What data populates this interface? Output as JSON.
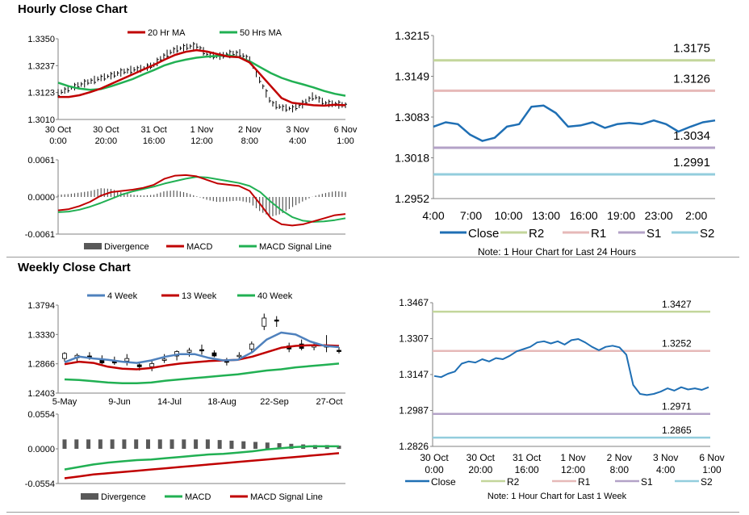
{
  "hourly_title": "Hourly Close Chart",
  "weekly_title": "Weekly Close Chart",
  "colors": {
    "ma20": "#c00000",
    "ma50": "#21b053",
    "close": "#1f6fb4",
    "r2": "#c3d69b",
    "r1": "#e6b9b8",
    "s1": "#b3a2c7",
    "s2": "#93cddd",
    "divergence": "#595959",
    "wk4": "#4f81bd",
    "wk13": "#c00000",
    "wk40": "#21b053"
  },
  "chart_data": [
    {
      "id": "hourly_price",
      "type": "line",
      "legend": [
        {
          "name": "20 Hr MA",
          "color": "#c00000"
        },
        {
          "name": "50 Hrs MA",
          "color": "#21b053"
        }
      ],
      "yticks": [
        "1.3350",
        "1.3237",
        "1.3123",
        "1.3010"
      ],
      "ylim": [
        1.301,
        1.335
      ],
      "xticks": [
        [
          "30 Oct",
          "0:00"
        ],
        [
          "30 Oct",
          "20:00"
        ],
        [
          "31 Oct",
          "16:00"
        ],
        [
          "1 Nov",
          "12:00"
        ],
        [
          "2 Nov",
          "8:00"
        ],
        [
          "3 Nov",
          "4:00"
        ],
        [
          "6 Nov",
          "1:00"
        ]
      ],
      "n": 88,
      "series": [
        {
          "name": "20 Hr MA",
          "values": [
            1.3105,
            1.3105,
            1.3112,
            1.3125,
            1.314,
            1.316,
            1.318,
            1.32,
            1.322,
            1.324,
            1.3262,
            1.3282,
            1.3295,
            1.3302,
            1.3296,
            1.3285,
            1.3275,
            1.3272,
            1.325,
            1.32,
            1.315,
            1.31,
            1.308,
            1.3075,
            1.307,
            1.3068,
            1.3072,
            1.307
          ]
        },
        {
          "name": "50 Hrs MA",
          "values": [
            1.3165,
            1.315,
            1.314,
            1.3135,
            1.3138,
            1.315,
            1.3165,
            1.318,
            1.32,
            1.3218,
            1.3238,
            1.3252,
            1.3262,
            1.327,
            1.3275,
            1.3278,
            1.328,
            1.3272,
            1.3255,
            1.323,
            1.3205,
            1.3185,
            1.317,
            1.3158,
            1.3145,
            1.313,
            1.3118,
            1.311
          ]
        },
        {
          "name": "Close",
          "values": [
            1.312,
            1.314,
            1.3155,
            1.317,
            1.3185,
            1.3195,
            1.321,
            1.322,
            1.3225,
            1.324,
            1.328,
            1.3305,
            1.3315,
            1.332,
            1.3285,
            1.3275,
            1.3285,
            1.329,
            1.326,
            1.317,
            1.308,
            1.306,
            1.3055,
            1.3075,
            1.311,
            1.308,
            1.3075,
            1.307
          ]
        }
      ]
    },
    {
      "id": "hourly_macd",
      "type": "line",
      "legend": [
        {
          "name": "Divergence",
          "color": "#595959"
        },
        {
          "name": "MACD",
          "color": "#c00000"
        },
        {
          "name": "MACD Signal Line",
          "color": "#21b053"
        }
      ],
      "yticks": [
        "0.0061",
        "0.0000",
        "-0.0061"
      ],
      "ylim": [
        -0.0061,
        0.0061
      ],
      "series": [
        {
          "name": "MACD",
          "values": [
            -0.0022,
            -0.002,
            -0.0015,
            -0.0008,
            0.0002,
            0.0008,
            0.001,
            0.0012,
            0.0015,
            0.002,
            0.003,
            0.0035,
            0.0036,
            0.0034,
            0.0028,
            0.0022,
            0.002,
            0.0018,
            0.001,
            -0.0012,
            -0.0035,
            -0.0045,
            -0.0047,
            -0.0045,
            -0.004,
            -0.0035,
            -0.003,
            -0.0028
          ]
        },
        {
          "name": "MACD Signal Line",
          "values": [
            -0.0025,
            -0.0024,
            -0.0021,
            -0.0016,
            -0.001,
            -0.0003,
            0.0004,
            0.0009,
            0.0013,
            0.0017,
            0.0022,
            0.0026,
            0.003,
            0.0033,
            0.0032,
            0.0029,
            0.0026,
            0.0023,
            0.0018,
            0.0008,
            -0.0008,
            -0.0022,
            -0.0033,
            -0.0039,
            -0.0041,
            -0.004,
            -0.0038,
            -0.0035
          ]
        }
      ]
    },
    {
      "id": "hourly_pivot",
      "type": "line",
      "legend": [
        {
          "name": "Close",
          "color": "#1f6fb4"
        },
        {
          "name": "R2",
          "color": "#c3d69b"
        },
        {
          "name": "R1",
          "color": "#e6b9b8"
        },
        {
          "name": "S1",
          "color": "#b3a2c7"
        },
        {
          "name": "S2",
          "color": "#93cddd"
        }
      ],
      "yticks": [
        "1.3215",
        "1.3149",
        "1.3083",
        "1.3018",
        "1.2952"
      ],
      "ylim": [
        1.2952,
        1.3215
      ],
      "xticks": [
        "4:00",
        "7:00",
        "10:00",
        "13:00",
        "16:00",
        "19:00",
        "23:00",
        "2:00"
      ],
      "levels": [
        {
          "name": "R2",
          "value": 1.3175,
          "label": "1.3175"
        },
        {
          "name": "R1",
          "value": 1.3126,
          "label": "1.3126"
        },
        {
          "name": "S1",
          "value": 1.3034,
          "label": "1.3034"
        },
        {
          "name": "S2",
          "value": 1.2991,
          "label": "1.2991"
        }
      ],
      "close": [
        1.3068,
        1.3075,
        1.3072,
        1.3055,
        1.3045,
        1.305,
        1.3068,
        1.3072,
        1.31,
        1.3102,
        1.309,
        1.3068,
        1.307,
        1.3075,
        1.3066,
        1.3072,
        1.3074,
        1.3072,
        1.3078,
        1.3072,
        1.306,
        1.3068,
        1.3075,
        1.3078
      ],
      "note": "Note: 1 Hour Chart for Last 24 Hours"
    },
    {
      "id": "weekly_price",
      "type": "line",
      "legend": [
        {
          "name": "4 Week",
          "color": "#4f81bd"
        },
        {
          "name": "13 Week",
          "color": "#c00000"
        },
        {
          "name": "40 Week",
          "color": "#21b053"
        }
      ],
      "yticks": [
        "1.3794",
        "1.3330",
        "1.2866",
        "1.2403"
      ],
      "ylim": [
        1.2403,
        1.3794
      ],
      "xticks": [
        "5-May",
        "9-Jun",
        "14-Jul",
        "18-Aug",
        "22-Sep",
        "27-Oct"
      ],
      "series": [
        {
          "name": "4 Week",
          "values": [
            1.289,
            1.298,
            1.295,
            1.293,
            1.29,
            1.288,
            1.292,
            1.298,
            1.302,
            1.302,
            1.296,
            1.292,
            1.293,
            1.305,
            1.325,
            1.336,
            1.333,
            1.322,
            1.315,
            1.313
          ]
        },
        {
          "name": "13 Week",
          "values": [
            1.286,
            1.29,
            1.288,
            1.282,
            1.279,
            1.278,
            1.28,
            1.284,
            1.287,
            1.289,
            1.291,
            1.292,
            1.293,
            1.298,
            1.305,
            1.312,
            1.315,
            1.316,
            1.316,
            1.315
          ]
        },
        {
          "name": "40 Week",
          "values": [
            1.262,
            1.261,
            1.259,
            1.257,
            1.256,
            1.256,
            1.257,
            1.26,
            1.262,
            1.264,
            1.266,
            1.268,
            1.27,
            1.273,
            1.276,
            1.278,
            1.281,
            1.283,
            1.285,
            1.287
          ]
        },
        {
          "name": "Candles",
          "values": [
            [
              1.295,
              1.303,
              1.29,
              1.305
            ],
            [
              1.296,
              1.3,
              1.29,
              1.303
            ],
            [
              1.299,
              1.296,
              1.293,
              1.305
            ],
            [
              1.294,
              1.288,
              1.286,
              1.3
            ],
            [
              1.292,
              1.288,
              1.285,
              1.298
            ],
            [
              1.291,
              1.295,
              1.284,
              1.302
            ],
            [
              1.285,
              1.282,
              1.276,
              1.29
            ],
            [
              1.282,
              1.287,
              1.275,
              1.292
            ],
            [
              1.294,
              1.294,
              1.288,
              1.302
            ],
            [
              1.299,
              1.306,
              1.292,
              1.308
            ],
            [
              1.305,
              1.308,
              1.298,
              1.312
            ],
            [
              1.309,
              1.307,
              1.301,
              1.317
            ],
            [
              1.304,
              1.299,
              1.297,
              1.308
            ],
            [
              1.293,
              1.289,
              1.284,
              1.296
            ],
            [
              1.298,
              1.3,
              1.292,
              1.305
            ],
            [
              1.31,
              1.318,
              1.305,
              1.322
            ],
            [
              1.346,
              1.359,
              1.34,
              1.366
            ],
            [
              1.356,
              1.354,
              1.345,
              1.362
            ],
            [
              1.315,
              1.31,
              1.305,
              1.32
            ],
            [
              1.318,
              1.311,
              1.308,
              1.325
            ],
            [
              1.313,
              1.315,
              1.308,
              1.32
            ],
            [
              1.313,
              1.316,
              1.305,
              1.332
            ],
            [
              1.308,
              1.306,
              1.303,
              1.313
            ]
          ]
        }
      ]
    },
    {
      "id": "weekly_macd",
      "type": "line",
      "legend": [
        {
          "name": "Divergence",
          "color": "#595959"
        },
        {
          "name": "MACD",
          "color": "#21b053"
        },
        {
          "name": "MACD Signal Line",
          "color": "#c00000"
        }
      ],
      "yticks": [
        "0.0554",
        "0.0000",
        "-0.0554"
      ],
      "ylim": [
        -0.0554,
        0.0554
      ],
      "series": [
        {
          "name": "Divergence",
          "values": [
            0.015,
            0.015,
            0.015,
            0.015,
            0.015,
            0.015,
            0.015,
            0.015,
            0.015,
            0.015,
            0.015,
            0.015,
            0.015,
            0.014,
            0.013,
            0.012,
            0.011,
            0.01,
            0.009,
            0.008,
            0.007,
            0.006,
            0.006,
            0.005
          ]
        },
        {
          "name": "MACD",
          "values": [
            -0.033,
            -0.029,
            -0.025,
            -0.022,
            -0.02,
            -0.018,
            -0.017,
            -0.015,
            -0.013,
            -0.011,
            -0.009,
            -0.008,
            -0.006,
            -0.004,
            -0.001,
            0.001,
            0.003,
            0.004,
            0.004,
            0.004
          ]
        },
        {
          "name": "MACD Signal Line",
          "values": [
            -0.047,
            -0.044,
            -0.041,
            -0.039,
            -0.037,
            -0.035,
            -0.033,
            -0.031,
            -0.029,
            -0.027,
            -0.025,
            -0.023,
            -0.021,
            -0.019,
            -0.017,
            -0.015,
            -0.013,
            -0.011,
            -0.009,
            -0.007
          ]
        }
      ]
    },
    {
      "id": "weekly_pivot",
      "type": "line",
      "legend": [
        {
          "name": "Close",
          "color": "#1f6fb4"
        },
        {
          "name": "R2",
          "color": "#c3d69b"
        },
        {
          "name": "R1",
          "color": "#e6b9b8"
        },
        {
          "name": "S1",
          "color": "#b3a2c7"
        },
        {
          "name": "S2",
          "color": "#93cddd"
        }
      ],
      "yticks": [
        "1.3467",
        "1.3307",
        "1.3147",
        "1.2987",
        "1.2826"
      ],
      "ylim": [
        1.2826,
        1.3467
      ],
      "xticks": [
        [
          "30 Oct",
          "0:00"
        ],
        [
          "30 Oct",
          "20:00"
        ],
        [
          "31 Oct",
          "16:00"
        ],
        [
          "1 Nov",
          "12:00"
        ],
        [
          "2 Nov",
          "8:00"
        ],
        [
          "3 Nov",
          "4:00"
        ],
        [
          "6 Nov",
          "1:00"
        ]
      ],
      "levels": [
        {
          "name": "R2",
          "value": 1.3427,
          "label": "1.3427"
        },
        {
          "name": "R1",
          "value": 1.3252,
          "label": "1.3252"
        },
        {
          "name": "S1",
          "value": 1.2971,
          "label": "1.2971"
        },
        {
          "name": "S2",
          "value": 1.2865,
          "label": "1.2865"
        }
      ],
      "close": [
        1.314,
        1.3135,
        1.315,
        1.316,
        1.3195,
        1.3205,
        1.32,
        1.3215,
        1.3205,
        1.322,
        1.3215,
        1.323,
        1.325,
        1.326,
        1.327,
        1.329,
        1.3295,
        1.3285,
        1.3295,
        1.328,
        1.33,
        1.3305,
        1.329,
        1.327,
        1.3255,
        1.327,
        1.3275,
        1.3268,
        1.3235,
        1.31,
        1.306,
        1.3055,
        1.306,
        1.307,
        1.3085,
        1.3075,
        1.309,
        1.308,
        1.3085,
        1.3078,
        1.309
      ],
      "note": "Note: 1 Hour Chart for Last 1 Week"
    }
  ]
}
